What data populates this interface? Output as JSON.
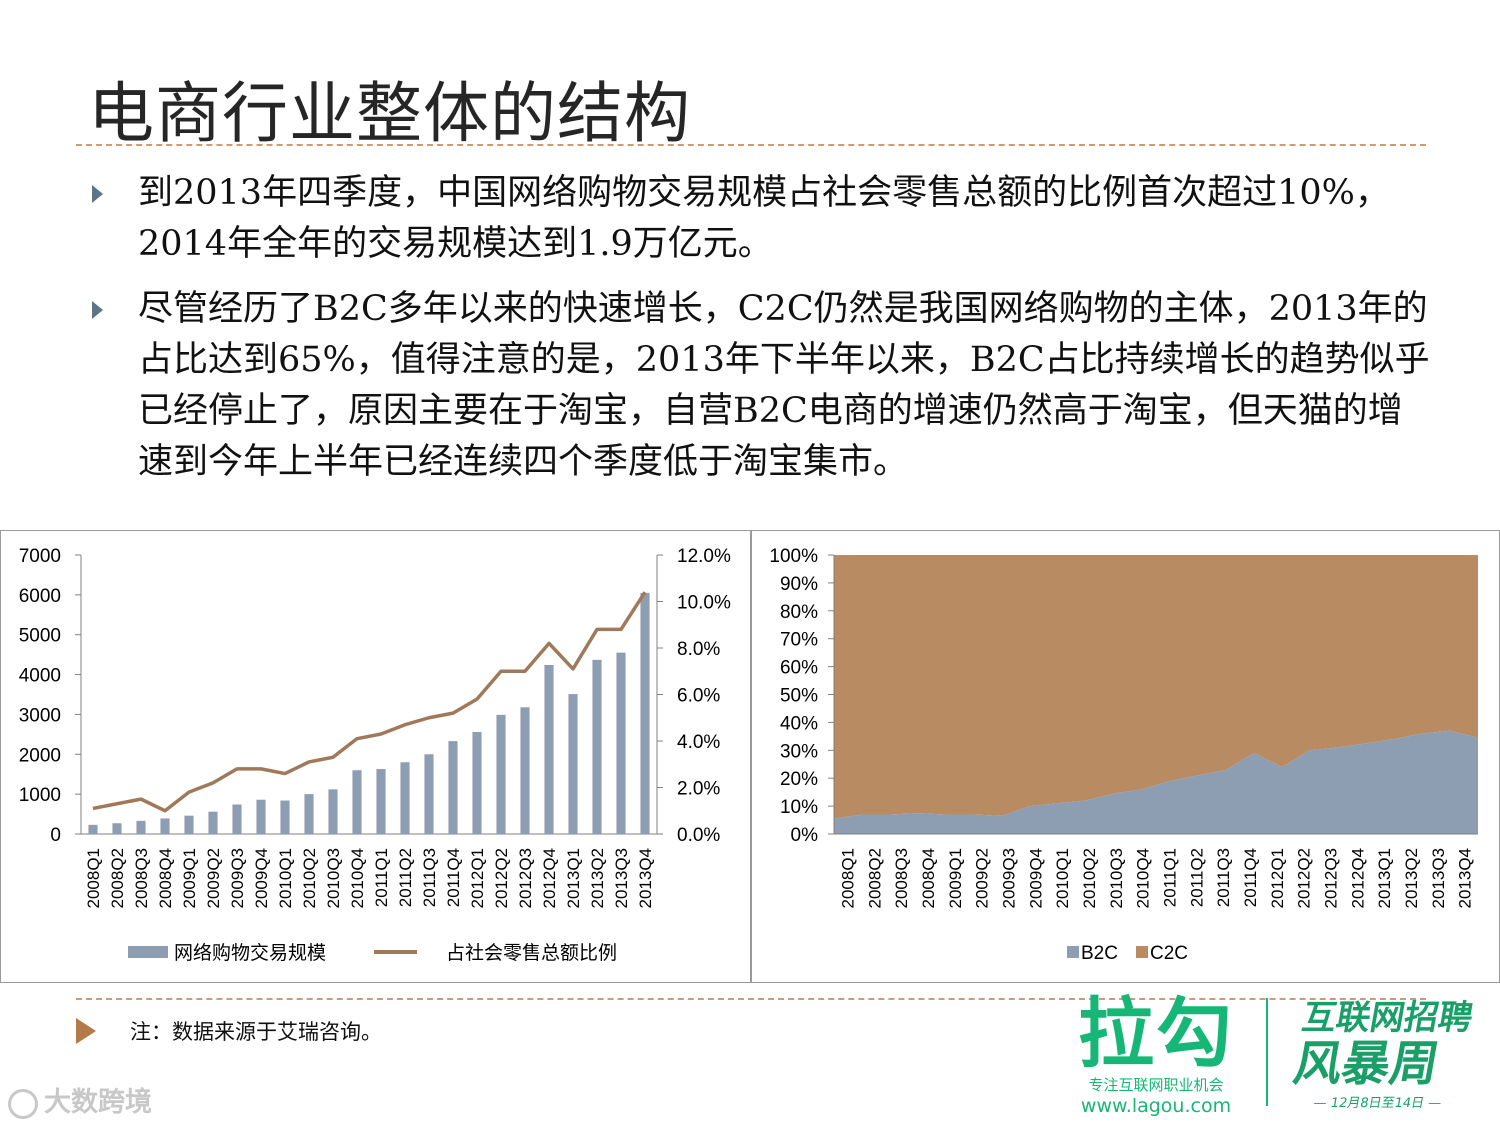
{
  "slide": {
    "title": "电商行业整体的结构",
    "bullets": [
      "到2013年四季度，中国网络购物交易规模占社会零售总额的比例首次超过10%，2014年全年的交易规模达到1.9万亿元。",
      "尽管经历了B2C多年以来的快速增长，C2C仍然是我国网络购物的主体，2013年的占比达到65%，值得注意的是，2013年下半年以来，B2C占比持续增长的趋势似乎已经停止了，原因主要在于淘宝，自营B2C电商的增速仍然高于淘宝，但天猫的增速到今年上半年已经连续四个季度低于淘宝集市。"
    ],
    "note": "注：数据来源于艾瑞咨询。"
  },
  "branding": {
    "lagou_logo": "拉勾",
    "lagou_slogan": "专注互联网职业机会",
    "lagou_url": "www.lagou.com",
    "event_line1": "互联网招聘",
    "event_line2": "风暴周",
    "event_dates": "12月8日至14日",
    "watermark": "大数跨境",
    "brand_color": "#16b776"
  },
  "chart_data": [
    {
      "type": "bar+line",
      "categories": [
        "2008Q1",
        "2008Q2",
        "2008Q3",
        "2008Q4",
        "2009Q1",
        "2009Q2",
        "2009Q3",
        "2009Q4",
        "2010Q1",
        "2010Q2",
        "2010Q3",
        "2010Q4",
        "2011Q1",
        "2011Q2",
        "2011Q3",
        "2011Q4",
        "2012Q1",
        "2012Q2",
        "2012Q3",
        "2012Q4",
        "2013Q1",
        "2013Q2",
        "2013Q3",
        "2013Q4"
      ],
      "series": [
        {
          "name": "网络购物交易规模",
          "type": "bar",
          "axis": "left",
          "color": "#8d9db2",
          "values": [
            230,
            270,
            330,
            390,
            460,
            560,
            740,
            860,
            840,
            1000,
            1120,
            1600,
            1630,
            1800,
            2000,
            2330,
            2560,
            2990,
            3180,
            4240,
            3510,
            4370,
            4550,
            6050
          ]
        },
        {
          "name": "占社会零售总额比例",
          "type": "line",
          "axis": "right",
          "color": "#a0785a",
          "values": [
            1.1,
            1.3,
            1.5,
            1.0,
            1.8,
            2.2,
            2.8,
            2.8,
            2.6,
            3.1,
            3.3,
            4.1,
            4.3,
            4.7,
            5.0,
            5.2,
            5.8,
            7.0,
            7.0,
            8.2,
            7.1,
            8.8,
            8.8,
            10.4
          ]
        }
      ],
      "y_left": {
        "min": 0,
        "max": 7000,
        "ticks": [
          "0",
          "1000",
          "2000",
          "3000",
          "4000",
          "5000",
          "6000",
          "7000"
        ]
      },
      "y_right": {
        "min": 0,
        "max": 12,
        "ticks": [
          "0.0%",
          "2.0%",
          "4.0%",
          "6.0%",
          "8.0%",
          "10.0%",
          "12.0%"
        ]
      },
      "legend": "bottom"
    },
    {
      "type": "area",
      "stacked": "percent",
      "categories": [
        "2008Q1",
        "2008Q2",
        "2008Q3",
        "2008Q4",
        "2009Q1",
        "2009Q2",
        "2009Q3",
        "2009Q4",
        "2010Q1",
        "2010Q2",
        "2010Q3",
        "2010Q4",
        "2011Q1",
        "2011Q2",
        "2011Q3",
        "2011Q4",
        "2012Q1",
        "2012Q2",
        "2012Q3",
        "2012Q4",
        "2013Q1",
        "2013Q2",
        "2013Q3",
        "2013Q4"
      ],
      "series": [
        {
          "name": "B2C",
          "color": "#8d9db2",
          "values": [
            5.5,
            7,
            7,
            7.5,
            7,
            7,
            6.5,
            10,
            11,
            12,
            14.5,
            16,
            19,
            21,
            23,
            29,
            24,
            30,
            31,
            32.5,
            34,
            36,
            37,
            34.5
          ]
        },
        {
          "name": "C2C",
          "color": "#b98b63",
          "values": [
            94.5,
            93,
            93,
            92.5,
            93,
            93,
            93.5,
            90,
            89,
            88,
            85.5,
            84,
            81,
            79,
            77,
            71,
            76,
            70,
            69,
            67.5,
            66,
            64,
            63,
            65.5
          ]
        }
      ],
      "y": {
        "min": 0,
        "max": 100,
        "ticks": [
          "0%",
          "10%",
          "20%",
          "30%",
          "40%",
          "50%",
          "60%",
          "70%",
          "80%",
          "90%",
          "100%"
        ]
      },
      "legend": "bottom"
    }
  ]
}
